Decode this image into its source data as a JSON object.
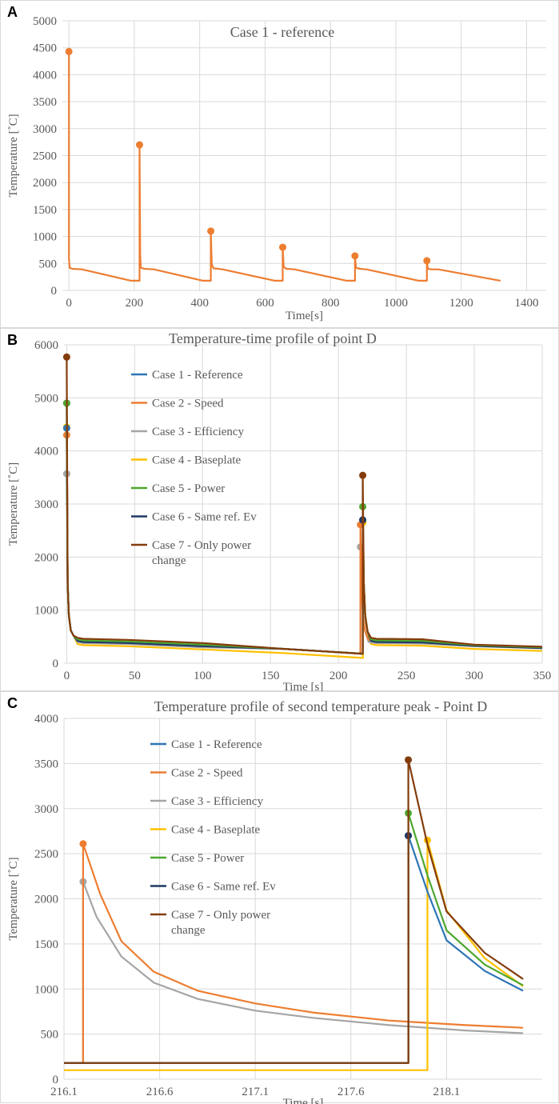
{
  "chart_data": [
    {
      "panel": "A",
      "type": "line",
      "title": "Case 1 - reference",
      "xlabel": "Time[s]",
      "ylabel": "Temperature [˚C]",
      "xlim": [
        -20,
        1460
      ],
      "ylim": [
        0,
        5000
      ],
      "xticks": [
        0,
        200,
        400,
        600,
        800,
        1000,
        1200,
        1400
      ],
      "yticks": [
        0,
        500,
        1000,
        1500,
        2000,
        2500,
        3000,
        3500,
        4000,
        4500,
        5000
      ],
      "series": [
        {
          "name": "Case 1",
          "color": "#ED7D31",
          "points": [
            [
              0,
              4430
            ],
            [
              0,
              600
            ],
            [
              2,
              420
            ],
            [
              10,
              400
            ],
            [
              40,
              390
            ],
            [
              190,
              180
            ],
            [
              216,
              180
            ],
            [
              216,
              2700
            ],
            [
              218,
              650
            ],
            [
              220,
              420
            ],
            [
              230,
              400
            ],
            [
              260,
              390
            ],
            [
              410,
              180
            ],
            [
              434,
              180
            ],
            [
              434,
              1100
            ],
            [
              437,
              480
            ],
            [
              442,
              410
            ],
            [
              470,
              390
            ],
            [
              630,
              180
            ],
            [
              654,
              180
            ],
            [
              654,
              800
            ],
            [
              657,
              440
            ],
            [
              665,
              400
            ],
            [
              690,
              390
            ],
            [
              850,
              180
            ],
            [
              875,
              180
            ],
            [
              875,
              640
            ],
            [
              878,
              420
            ],
            [
              890,
              400
            ],
            [
              910,
              390
            ],
            [
              1070,
              180
            ],
            [
              1095,
              180
            ],
            [
              1095,
              550
            ],
            [
              1098,
              400
            ],
            [
              1110,
              390
            ],
            [
              1130,
              390
            ],
            [
              1320,
              180
            ]
          ],
          "markers": [
            [
              0,
              4430
            ],
            [
              216,
              2700
            ],
            [
              434,
              1100
            ],
            [
              654,
              800
            ],
            [
              875,
              640
            ],
            [
              1095,
              550
            ]
          ]
        }
      ]
    },
    {
      "panel": "B",
      "type": "line",
      "title": "Temperature-time profile of point D",
      "xlabel": "Time [s]",
      "ylabel": "Temperature [˚C]",
      "xlim": [
        -2,
        350
      ],
      "ylim": [
        0,
        6000
      ],
      "xticks": [
        0,
        50,
        100,
        150,
        200,
        250,
        300,
        350
      ],
      "yticks": [
        0,
        1000,
        2000,
        3000,
        4000,
        5000,
        6000
      ],
      "series": [
        {
          "name": "Case 1 - Reference",
          "color": "#2E75B6",
          "peak1": 4430,
          "peak2": 2700,
          "pre": 180,
          "t2": 217.9,
          "plateau": 410,
          "end": 290
        },
        {
          "name": "Case 2 - Speed",
          "color": "#ED7D31",
          "peak1": 4300,
          "peak2": 2610,
          "pre": 180,
          "t2": 216.2,
          "plateau": 420,
          "end": 290
        },
        {
          "name": "Case 3 - Efficiency",
          "color": "#A5A5A5",
          "peak1": 3570,
          "peak2": 2190,
          "pre": 180,
          "t2": 216.2,
          "plateau": 380,
          "end": 280
        },
        {
          "name": "Case 4 - Baseplate",
          "color": "#FFC000",
          "peak1": 4450,
          "peak2": 2650,
          "pre": 100,
          "t2": 218.0,
          "plateau": 340,
          "end": 230
        },
        {
          "name": "Case 5 - Power",
          "color": "#4EA72E",
          "peak1": 4900,
          "peak2": 2950,
          "pre": 180,
          "t2": 217.9,
          "plateau": 430,
          "end": 300
        },
        {
          "name": "Case 6 - Same ref. Ev",
          "color": "#1F3864",
          "peak1": 4900,
          "peak2": 2700,
          "pre": 180,
          "t2": 217.9,
          "plateau": 400,
          "end": 285
        },
        {
          "name": "Case 7 - Only power change",
          "color": "#843C0C",
          "peak1": 5770,
          "peak2": 3540,
          "pre": 180,
          "t2": 217.9,
          "plateau": 460,
          "end": 310
        }
      ]
    },
    {
      "panel": "C",
      "type": "line",
      "title": "Temperature profile of second temperature peak - Point D",
      "xlabel": "Time [s]",
      "ylabel": "Temperature [˚C]",
      "xlim": [
        216.1,
        218.6
      ],
      "ylim": [
        0,
        4000
      ],
      "xticks": [
        "216.1",
        "216.6",
        "217.1",
        "217.6",
        "218.1"
      ],
      "yticks": [
        0,
        500,
        1000,
        1500,
        2000,
        2500,
        3000,
        3500,
        4000
      ],
      "series": [
        {
          "name": "Case 1 - Reference",
          "color": "#2E75B6",
          "points": [
            [
              216.1,
              180
            ],
            [
              217.9,
              180
            ],
            [
              217.9,
              2700
            ],
            [
              218.0,
              2080
            ],
            [
              218.1,
              1540
            ],
            [
              218.3,
              1200
            ],
            [
              218.5,
              980
            ]
          ],
          "markers": [
            [
              217.9,
              2700
            ]
          ]
        },
        {
          "name": "Case 2 - Speed",
          "color": "#ED7D31",
          "points": [
            [
              216.1,
              180
            ],
            [
              216.2,
              180
            ],
            [
              216.2,
              2610
            ],
            [
              216.29,
              2050
            ],
            [
              216.4,
              1530
            ],
            [
              216.57,
              1190
            ],
            [
              216.8,
              980
            ],
            [
              217.1,
              840
            ],
            [
              217.4,
              740
            ],
            [
              217.8,
              650
            ],
            [
              218.2,
              600
            ],
            [
              218.5,
              570
            ]
          ],
          "markers": [
            [
              216.2,
              2610
            ]
          ]
        },
        {
          "name": "Case 3 - Efficiency",
          "color": "#A5A5A5",
          "points": [
            [
              216.1,
              180
            ],
            [
              216.2,
              180
            ],
            [
              216.2,
              2190
            ],
            [
              216.27,
              1800
            ],
            [
              216.4,
              1360
            ],
            [
              216.57,
              1070
            ],
            [
              216.8,
              890
            ],
            [
              217.1,
              760
            ],
            [
              217.4,
              680
            ],
            [
              217.8,
              600
            ],
            [
              218.2,
              540
            ],
            [
              218.5,
              510
            ]
          ],
          "markers": [
            [
              216.2,
              2190
            ]
          ]
        },
        {
          "name": "Case 4 - Baseplate",
          "color": "#FFC000",
          "points": [
            [
              216.1,
              100
            ],
            [
              218.0,
              100
            ],
            [
              218.0,
              2650
            ],
            [
              218.1,
              1870
            ],
            [
              218.3,
              1340
            ],
            [
              218.5,
              1030
            ]
          ],
          "markers": [
            [
              218.0,
              2650
            ]
          ]
        },
        {
          "name": "Case 5 - Power",
          "color": "#4EA72E",
          "points": [
            [
              216.1,
              180
            ],
            [
              217.9,
              180
            ],
            [
              217.9,
              2950
            ],
            [
              218.0,
              2260
            ],
            [
              218.1,
              1650
            ],
            [
              218.3,
              1270
            ],
            [
              218.5,
              1040
            ]
          ],
          "markers": [
            [
              217.9,
              2950
            ]
          ]
        },
        {
          "name": "Case 6 - Same ref. Ev",
          "color": "#1F3864",
          "points": [
            [
              216.1,
              180
            ],
            [
              217.9,
              180
            ],
            [
              217.9,
              2700
            ]
          ],
          "markers": [
            [
              217.9,
              2700
            ]
          ]
        },
        {
          "name": "Case 7 - Only power change",
          "color": "#843C0C",
          "points": [
            [
              216.1,
              180
            ],
            [
              217.9,
              180
            ],
            [
              217.9,
              3540
            ],
            [
              218.0,
              2600
            ],
            [
              218.1,
              1860
            ],
            [
              218.3,
              1400
            ],
            [
              218.5,
              1110
            ]
          ],
          "markers": [
            [
              217.9,
              3540
            ]
          ]
        }
      ]
    }
  ],
  "panels": {
    "a_label": "A",
    "b_label": "B",
    "c_label": "C"
  }
}
